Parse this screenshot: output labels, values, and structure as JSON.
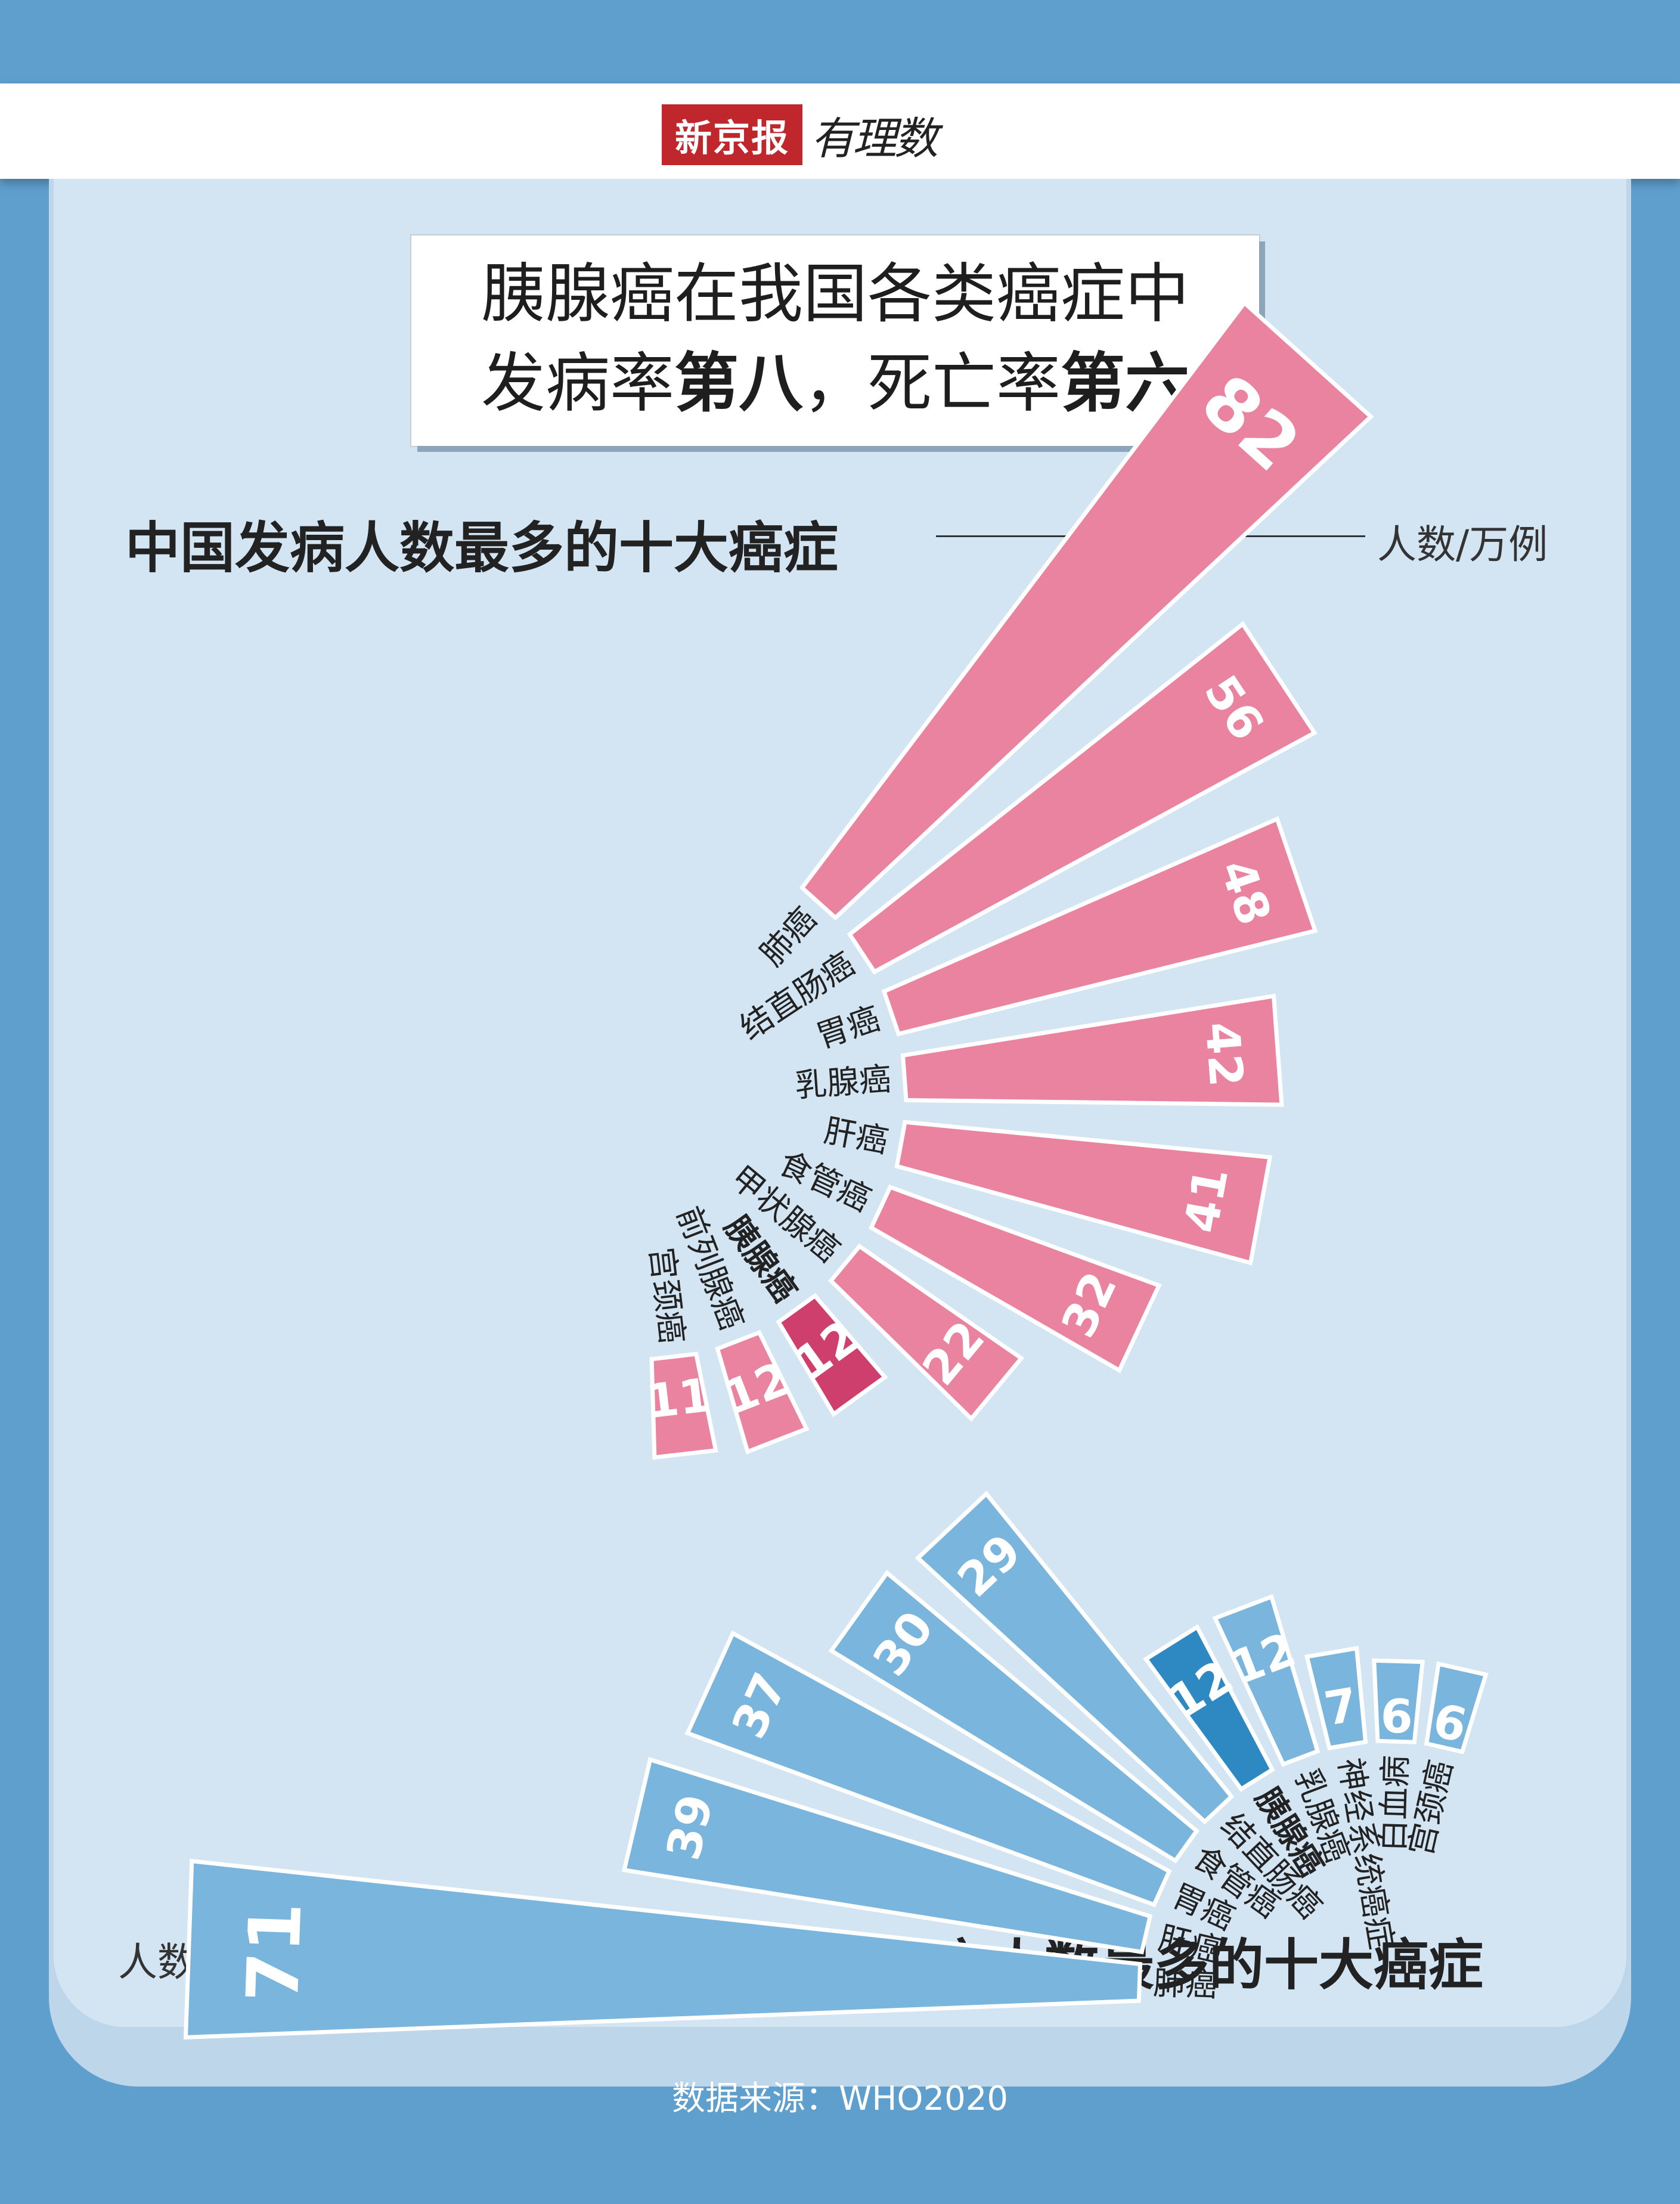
{
  "header": {
    "brand_red": "新京报",
    "brand_script": "有理数"
  },
  "title": {
    "line1": "胰腺癌在我国各类癌症中",
    "line2_a": "发病率",
    "line2_b": "第八",
    "line2_c": "，死亡率",
    "line2_d": "第六"
  },
  "colors": {
    "incidence": "#e9839f",
    "incidence_highlight": "#cf3f6d",
    "death": "#79b5dc",
    "death_highlight": "#2e89c2"
  },
  "chart_data": [
    {
      "type": "bar",
      "title": "中国发病人数最多的十大癌症",
      "ylabel": "人数/万例",
      "highlight": "胰腺癌",
      "categories": [
        "肺癌",
        "结直肠癌",
        "胃癌",
        "乳腺癌",
        "肝癌",
        "食管癌",
        "甲状腺癌",
        "胰腺癌",
        "前列腺癌",
        "宫颈癌"
      ],
      "values": [
        82,
        56,
        48,
        42,
        41,
        32,
        22,
        12,
        12,
        11
      ]
    },
    {
      "type": "bar",
      "title": "中国死亡人数最多的十大癌症",
      "ylabel": "人数/万例",
      "highlight": "胰腺癌",
      "categories": [
        "肺癌",
        "肝癌",
        "胃癌",
        "食管癌",
        "结直肠癌",
        "胰腺癌",
        "乳腺癌",
        "神经系统癌症",
        "白血病",
        "宫颈癌"
      ],
      "values": [
        71,
        39,
        37,
        30,
        29,
        12,
        12,
        7,
        6,
        6
      ]
    }
  ],
  "source": "数据来源：WHO2020"
}
